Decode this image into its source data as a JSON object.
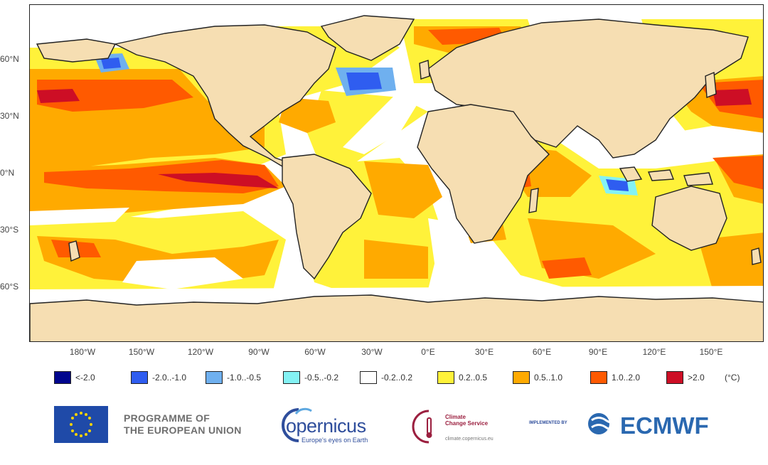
{
  "map": {
    "latitude_labels": [
      "60°N",
      "30°N",
      "0°N",
      "30°S",
      "60°S"
    ],
    "longitude_labels": [
      "180°W",
      "150°W",
      "120°W",
      "90°W",
      "60°W",
      "30°W",
      "0°E",
      "30°E",
      "60°E",
      "90°E",
      "120°E",
      "150°E"
    ],
    "colors": {
      "land": "#f6deb2",
      "ocean_neutral": "#ffffff"
    }
  },
  "legend": {
    "items": [
      {
        "label": "<-2.0",
        "color": "#00068e"
      },
      {
        "label": "-2.0..-1.0",
        "color": "#2f5df0"
      },
      {
        "label": "-1.0..-0.5",
        "color": "#6fb0ef"
      },
      {
        "label": "-0.5..-0.2",
        "color": "#84f2f4"
      },
      {
        "label": "-0.2..0.2",
        "color": "#ffffff"
      },
      {
        "label": "0.2..0.5",
        "color": "#fff23a"
      },
      {
        "label": "0.5..1.0",
        "color": "#ffaa00"
      },
      {
        "label": "1.0..2.0",
        "color": "#ff5a00"
      },
      {
        "label": ">2.0",
        "color": "#cd0e25"
      }
    ],
    "unit": "(°C)"
  },
  "logos": {
    "eu_line1": "PROGRAMME OF",
    "eu_line2": "THE EUROPEAN UNION",
    "copernicus": "opernicus",
    "copernicus_tagline": "Europe's eyes on Earth",
    "c3s_line1": "Climate",
    "c3s_line2": "Change Service",
    "c3s_url": "climate.copernicus.eu",
    "implemented_by": "IMPLEMENTED BY",
    "ecmwf": "ECMWF"
  }
}
